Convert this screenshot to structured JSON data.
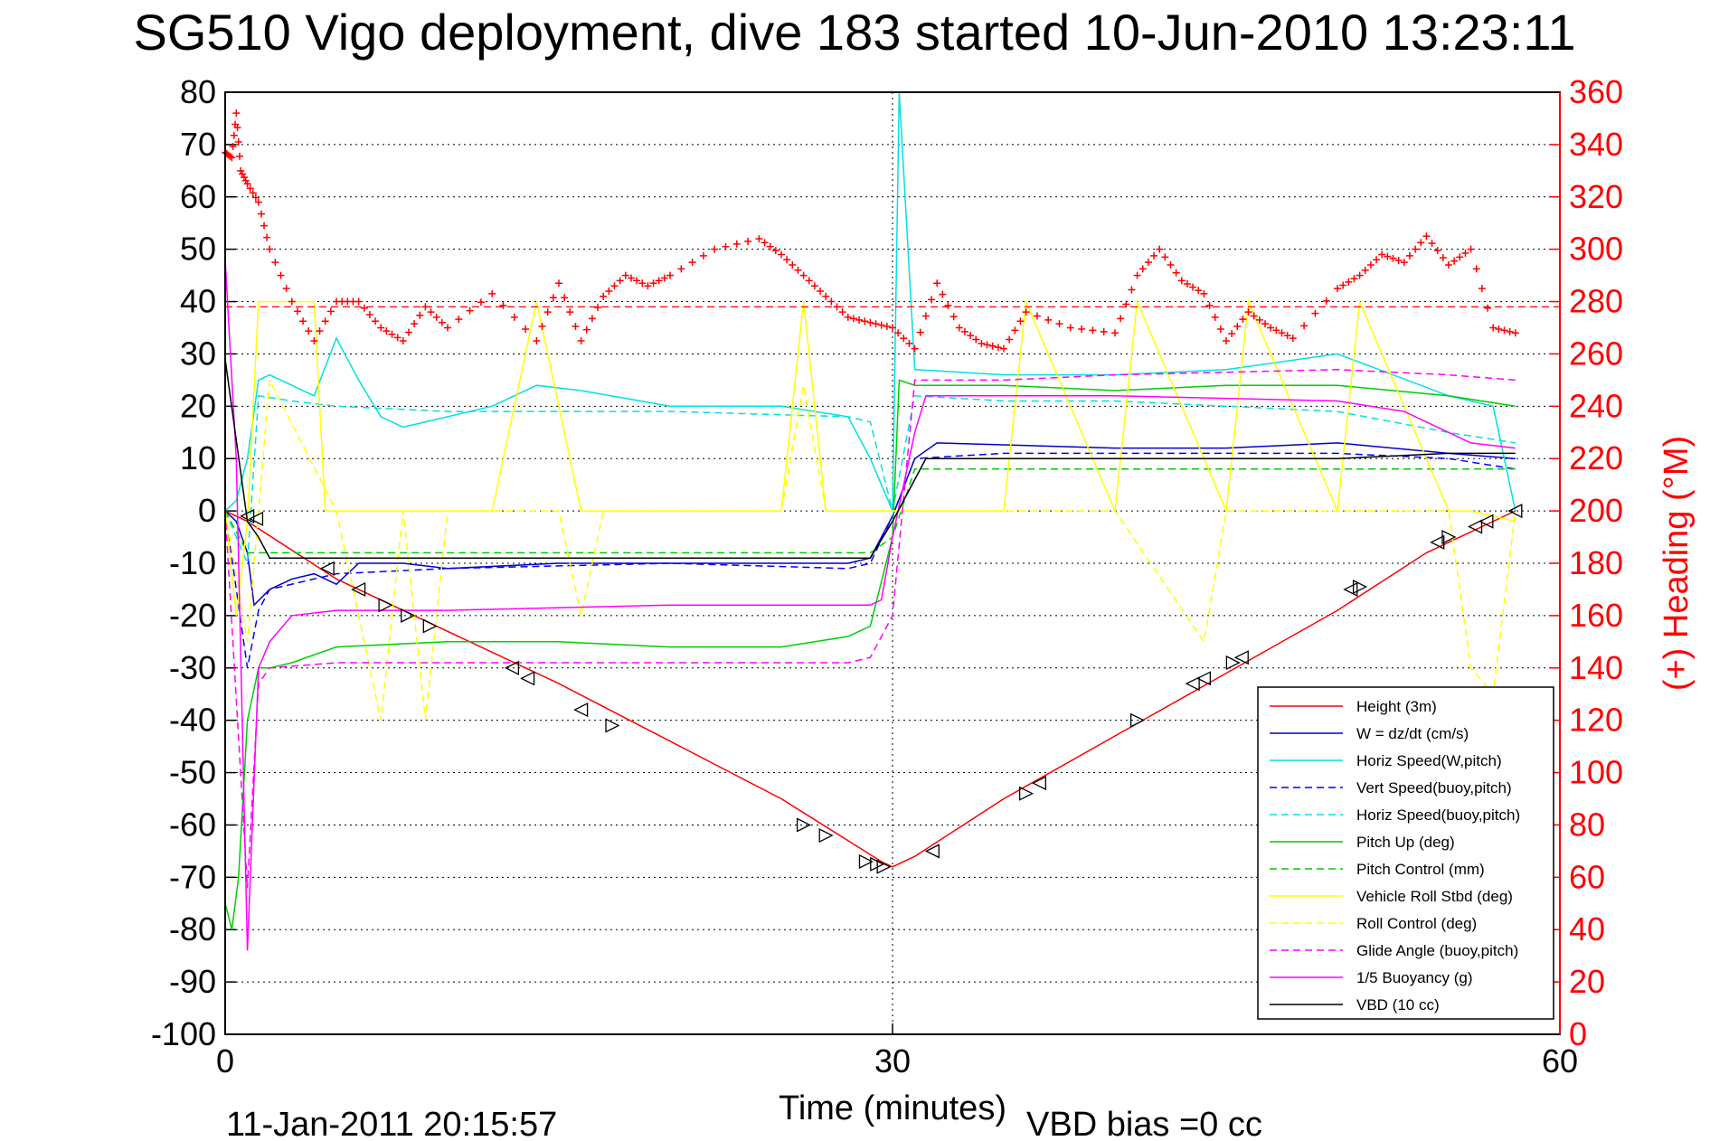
{
  "chart_data": {
    "type": "line",
    "title": "SG510 Vigo deployment, dive 183 started 10-Jun-2010 13:23:11",
    "xlabel": "Time (minutes)",
    "ylabel_right": "(+) Heading (°M)",
    "footer_left": "11-Jan-2011 20:15:57",
    "footer_right": "VBD bias =0 cc",
    "xlim": [
      0,
      60
    ],
    "ylim_left": [
      -100,
      80
    ],
    "ylim_right": [
      0,
      360
    ],
    "xticks": [
      "0",
      "30",
      "60"
    ],
    "yticks_left": [
      "80",
      "70",
      "60",
      "50",
      "40",
      "30",
      "20",
      "10",
      "0",
      "-10",
      "-20",
      "-30",
      "-40",
      "-50",
      "-60",
      "-70",
      "-80",
      "-90",
      "-100"
    ],
    "yticks_right": [
      "360",
      "340",
      "320",
      "300",
      "280",
      "260",
      "240",
      "220",
      "200",
      "180",
      "160",
      "140",
      "120",
      "100",
      "80",
      "60",
      "40",
      "20",
      "0"
    ],
    "grid": true,
    "legend_position": "bottom-right",
    "colors": {
      "axis": "#000000",
      "right_axis": "#ff0000",
      "grid": "#000000"
    },
    "series": [
      {
        "name": "Height (3m)",
        "color": "#ff0000",
        "style": "solid",
        "x": [
          0,
          1,
          5,
          10,
          15,
          20,
          25,
          28,
          29.5,
          30,
          31,
          35,
          40,
          45,
          50,
          54,
          58
        ],
        "y": [
          0,
          -2,
          -13,
          -23,
          -33,
          -44,
          -55,
          -63,
          -67,
          -68,
          -66,
          -55,
          -43,
          -31,
          -19,
          -8,
          0
        ]
      },
      {
        "name": "W = dz/dt (cm/s)",
        "color": "#0000cc",
        "style": "solid",
        "x": [
          0,
          0.5,
          1,
          1.3,
          2,
          3,
          4,
          5,
          6,
          8,
          10,
          15,
          20,
          25,
          28,
          29,
          30,
          31,
          32,
          40,
          45,
          50,
          55,
          58
        ],
        "y": [
          0,
          -2,
          -8,
          -18,
          -15,
          -13,
          -12,
          -14,
          -10,
          -10,
          -11,
          -10,
          -10,
          -10,
          -10,
          -9,
          -1,
          10,
          13,
          12,
          12,
          13,
          11,
          10
        ]
      },
      {
        "name": "Horiz Speed(W,pitch)",
        "color": "#00e0e0",
        "style": "solid",
        "x": [
          0,
          0.5,
          1,
          1.5,
          2,
          3,
          4,
          5,
          6,
          7,
          8,
          10,
          12,
          14,
          16,
          20,
          25,
          28,
          29,
          30,
          30.3,
          31,
          35,
          40,
          45,
          50,
          55,
          57,
          58
        ],
        "y": [
          0,
          2,
          10,
          25,
          26,
          24,
          22,
          33,
          25,
          18,
          16,
          18,
          20,
          24,
          23,
          20,
          20,
          18,
          10,
          0,
          80,
          27,
          26,
          26,
          27,
          30,
          22,
          20,
          0
        ]
      },
      {
        "name": "Vert Speed(buoy,pitch)",
        "color": "#0000ff",
        "style": "dashed",
        "x": [
          0,
          1,
          1.5,
          2,
          5,
          10,
          20,
          28,
          29,
          30,
          31,
          35,
          40,
          50,
          55,
          58
        ],
        "y": [
          0,
          -30,
          -19,
          -15,
          -12,
          -11,
          -10,
          -11,
          -10,
          -1,
          10,
          11,
          11,
          11,
          10,
          8
        ]
      },
      {
        "name": "Horiz Speed(buoy,pitch)",
        "color": "#00e0e0",
        "style": "dashed",
        "x": [
          0,
          1,
          1.5,
          3,
          5,
          10,
          20,
          28,
          29,
          30,
          31,
          35,
          40,
          50,
          55,
          58
        ],
        "y": [
          0,
          -10,
          22,
          21,
          20,
          19,
          19,
          18,
          17,
          0,
          22,
          21,
          21,
          19,
          15,
          13
        ]
      },
      {
        "name": "Pitch Up (deg)",
        "color": "#00cc00",
        "style": "solid",
        "x": [
          0,
          0.3,
          0.6,
          1,
          1.5,
          2,
          3,
          5,
          10,
          15,
          20,
          25,
          28,
          29,
          30,
          30.3,
          31,
          35,
          40,
          45,
          50,
          55,
          58
        ],
        "y": [
          -75,
          -80,
          -70,
          -40,
          -30,
          -30,
          -29,
          -26,
          -25,
          -25,
          -26,
          -26,
          -24,
          -22,
          -5,
          25,
          24,
          24,
          23,
          24,
          24,
          22,
          20
        ]
      },
      {
        "name": "Pitch Control (mm)",
        "color": "#00cc00",
        "style": "dashed",
        "x": [
          0,
          1,
          1.5,
          10,
          20,
          29,
          30,
          31,
          40,
          50,
          58
        ],
        "y": [
          0,
          -8,
          -8,
          -8,
          -8,
          -8,
          -5,
          8,
          8,
          8,
          8
        ]
      },
      {
        "name": "Vehicle Roll Stbd (deg)",
        "color": "#ffff00",
        "style": "solid",
        "x": [
          0,
          0.5,
          1,
          1.5,
          2,
          3,
          4,
          4.5,
          5,
          7,
          8,
          10,
          12,
          14,
          16,
          17,
          20,
          25,
          26,
          27,
          28,
          29,
          30,
          31,
          35,
          36,
          40,
          41,
          45,
          46,
          50,
          51,
          55,
          56,
          58
        ],
        "y": [
          0,
          -20,
          -2,
          40,
          40,
          40,
          40,
          0,
          0,
          0,
          0,
          0,
          0,
          40,
          0,
          0,
          0,
          0,
          40,
          0,
          0,
          0,
          0,
          0,
          0,
          40,
          0,
          40,
          0,
          40,
          0,
          40,
          0,
          0,
          -2
        ]
      },
      {
        "name": "Roll Control (deg)",
        "color": "#ffff00",
        "style": "dashed",
        "x": [
          0,
          1,
          2,
          5,
          7,
          8,
          9,
          10,
          15,
          16,
          17,
          20,
          25,
          26,
          27,
          29,
          30,
          31,
          35,
          40,
          44,
          45,
          50,
          55,
          56,
          57,
          58
        ],
        "y": [
          0,
          -25,
          25,
          0,
          -40,
          0,
          -40,
          0,
          0,
          -20,
          0,
          0,
          0,
          24,
          0,
          0,
          0,
          0,
          0,
          0,
          -25,
          0,
          0,
          0,
          -30,
          -35,
          0
        ]
      },
      {
        "name": "Glide Angle (buoy,pitch)",
        "color": "#ff00ff",
        "style": "dashed",
        "x": [
          0,
          1,
          1.5,
          2,
          5,
          10,
          20,
          28,
          29,
          30,
          31,
          35,
          40,
          50,
          55,
          58
        ],
        "y": [
          0,
          -72,
          -33,
          -30,
          -29,
          -29,
          -29,
          -29,
          -28,
          -20,
          25,
          25,
          26,
          27,
          26,
          25
        ]
      },
      {
        "name": "1/5 Buoyancy (g)",
        "color": "#ff00ff",
        "style": "solid",
        "x": [
          0,
          0.5,
          1,
          1.5,
          2,
          3,
          5,
          10,
          20,
          29,
          29.5,
          30,
          31,
          31.5,
          40,
          50,
          53,
          55,
          56,
          58
        ],
        "y": [
          48,
          10,
          -84,
          -30,
          -25,
          -20,
          -19,
          -19,
          -18,
          -18,
          -17,
          -5,
          15,
          22,
          22,
          21,
          19,
          15,
          13,
          12
        ]
      },
      {
        "name": "VBD (10 cc)",
        "color": "#000000",
        "style": "solid",
        "x": [
          0,
          1,
          1.5,
          2,
          5,
          10,
          20,
          28,
          29,
          30,
          31,
          31.5,
          40,
          50,
          55,
          58
        ],
        "y": [
          29,
          -2,
          -5,
          -9,
          -9,
          -9,
          -9,
          -9,
          -9,
          -2,
          6,
          10,
          10,
          10,
          11,
          11
        ]
      }
    ],
    "heading_series": {
      "name": "Heading",
      "color": "#ff0000",
      "axis": "right",
      "marker": "+",
      "x": [
        0,
        0.3,
        0.5,
        0.7,
        1,
        1.5,
        2,
        3,
        4,
        5,
        6,
        7,
        8,
        9,
        10,
        12,
        14,
        15,
        16,
        17,
        18,
        19,
        20,
        22,
        24,
        25,
        26,
        27,
        28,
        29,
        30,
        31,
        32,
        33,
        34,
        35,
        36,
        38,
        40,
        41,
        42,
        43,
        44,
        45,
        46,
        47,
        48,
        50,
        51,
        52,
        53,
        54,
        55,
        56,
        57,
        58
      ],
      "y": [
        337,
        335,
        352,
        330,
        325,
        318,
        300,
        280,
        265,
        280,
        280,
        270,
        265,
        278,
        270,
        283,
        265,
        287,
        265,
        282,
        290,
        286,
        290,
        300,
        304,
        298,
        290,
        282,
        274,
        272,
        270,
        262,
        287,
        270,
        264,
        262,
        276,
        270,
        268,
        290,
        300,
        288,
        283,
        265,
        276,
        270,
        266,
        285,
        290,
        298,
        295,
        305,
        294,
        300,
        270,
        268
      ],
      "note_threshold": 278
    },
    "dive_markers": {
      "x": [
        1,
        1.4,
        4.6,
        6,
        7.2,
        8.2,
        9.2,
        12.9,
        13.6,
        16,
        17.4,
        26,
        27,
        28.8,
        29.3,
        29.6,
        31.8,
        36,
        36.6,
        41,
        43.5,
        44,
        45.3,
        45.7,
        50.6,
        51,
        54.5,
        55,
        56.2,
        56.7,
        58
      ],
      "y": [
        -1,
        -1.5,
        -11,
        -15,
        -18,
        -20,
        -22,
        -30,
        -32,
        -38,
        -41,
        -60,
        -62,
        -67,
        -67.5,
        -68,
        -65,
        -54,
        -52,
        -40,
        -33,
        -32,
        -29,
        -28,
        -15,
        -14.5,
        -6,
        -5,
        -3,
        -2,
        0
      ],
      "direction": [
        "left",
        "left",
        "left",
        "left",
        "right",
        "right",
        "right",
        "left",
        "left",
        "left",
        "right",
        "right",
        "right",
        "right",
        "right",
        "right",
        "left",
        "right",
        "left",
        "right",
        "left",
        "left",
        "right",
        "left",
        "left",
        "right",
        "left",
        "right",
        "left",
        "left",
        "left"
      ]
    }
  }
}
